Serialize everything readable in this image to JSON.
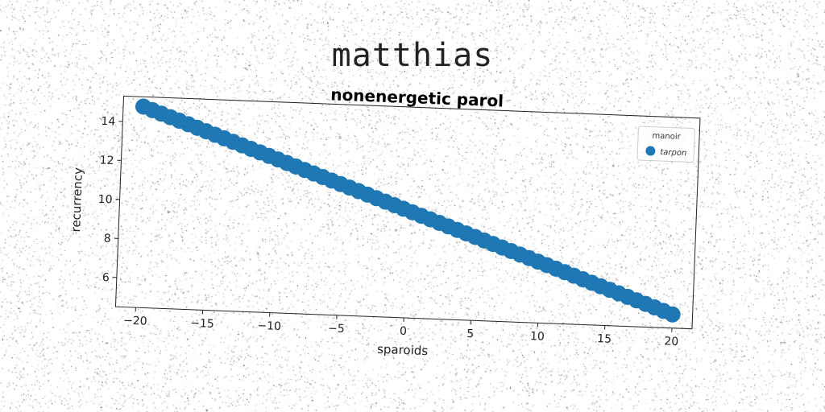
{
  "figure": {
    "suptitle": "matthias"
  },
  "chart_data": {
    "type": "scatter",
    "title": "nonenergetic parol",
    "xlabel": "sparoids",
    "ylabel": "recurrency",
    "xlim": [
      -21.5,
      21.5
    ],
    "ylim": [
      4.5,
      15.3
    ],
    "xticks": [
      -20,
      -15,
      -10,
      -5,
      0,
      5,
      10,
      15,
      20
    ],
    "yticks": [
      6,
      8,
      10,
      12,
      14
    ],
    "grid": false,
    "legend": {
      "title": "manoir",
      "placement": "top-right"
    },
    "series": [
      {
        "name": "tarpon",
        "color": "#1f77b4",
        "x_range": [
          -20,
          20
        ],
        "count": 60,
        "y_at_x_min": 14.8,
        "y_at_x_max": 5.2
      }
    ]
  }
}
